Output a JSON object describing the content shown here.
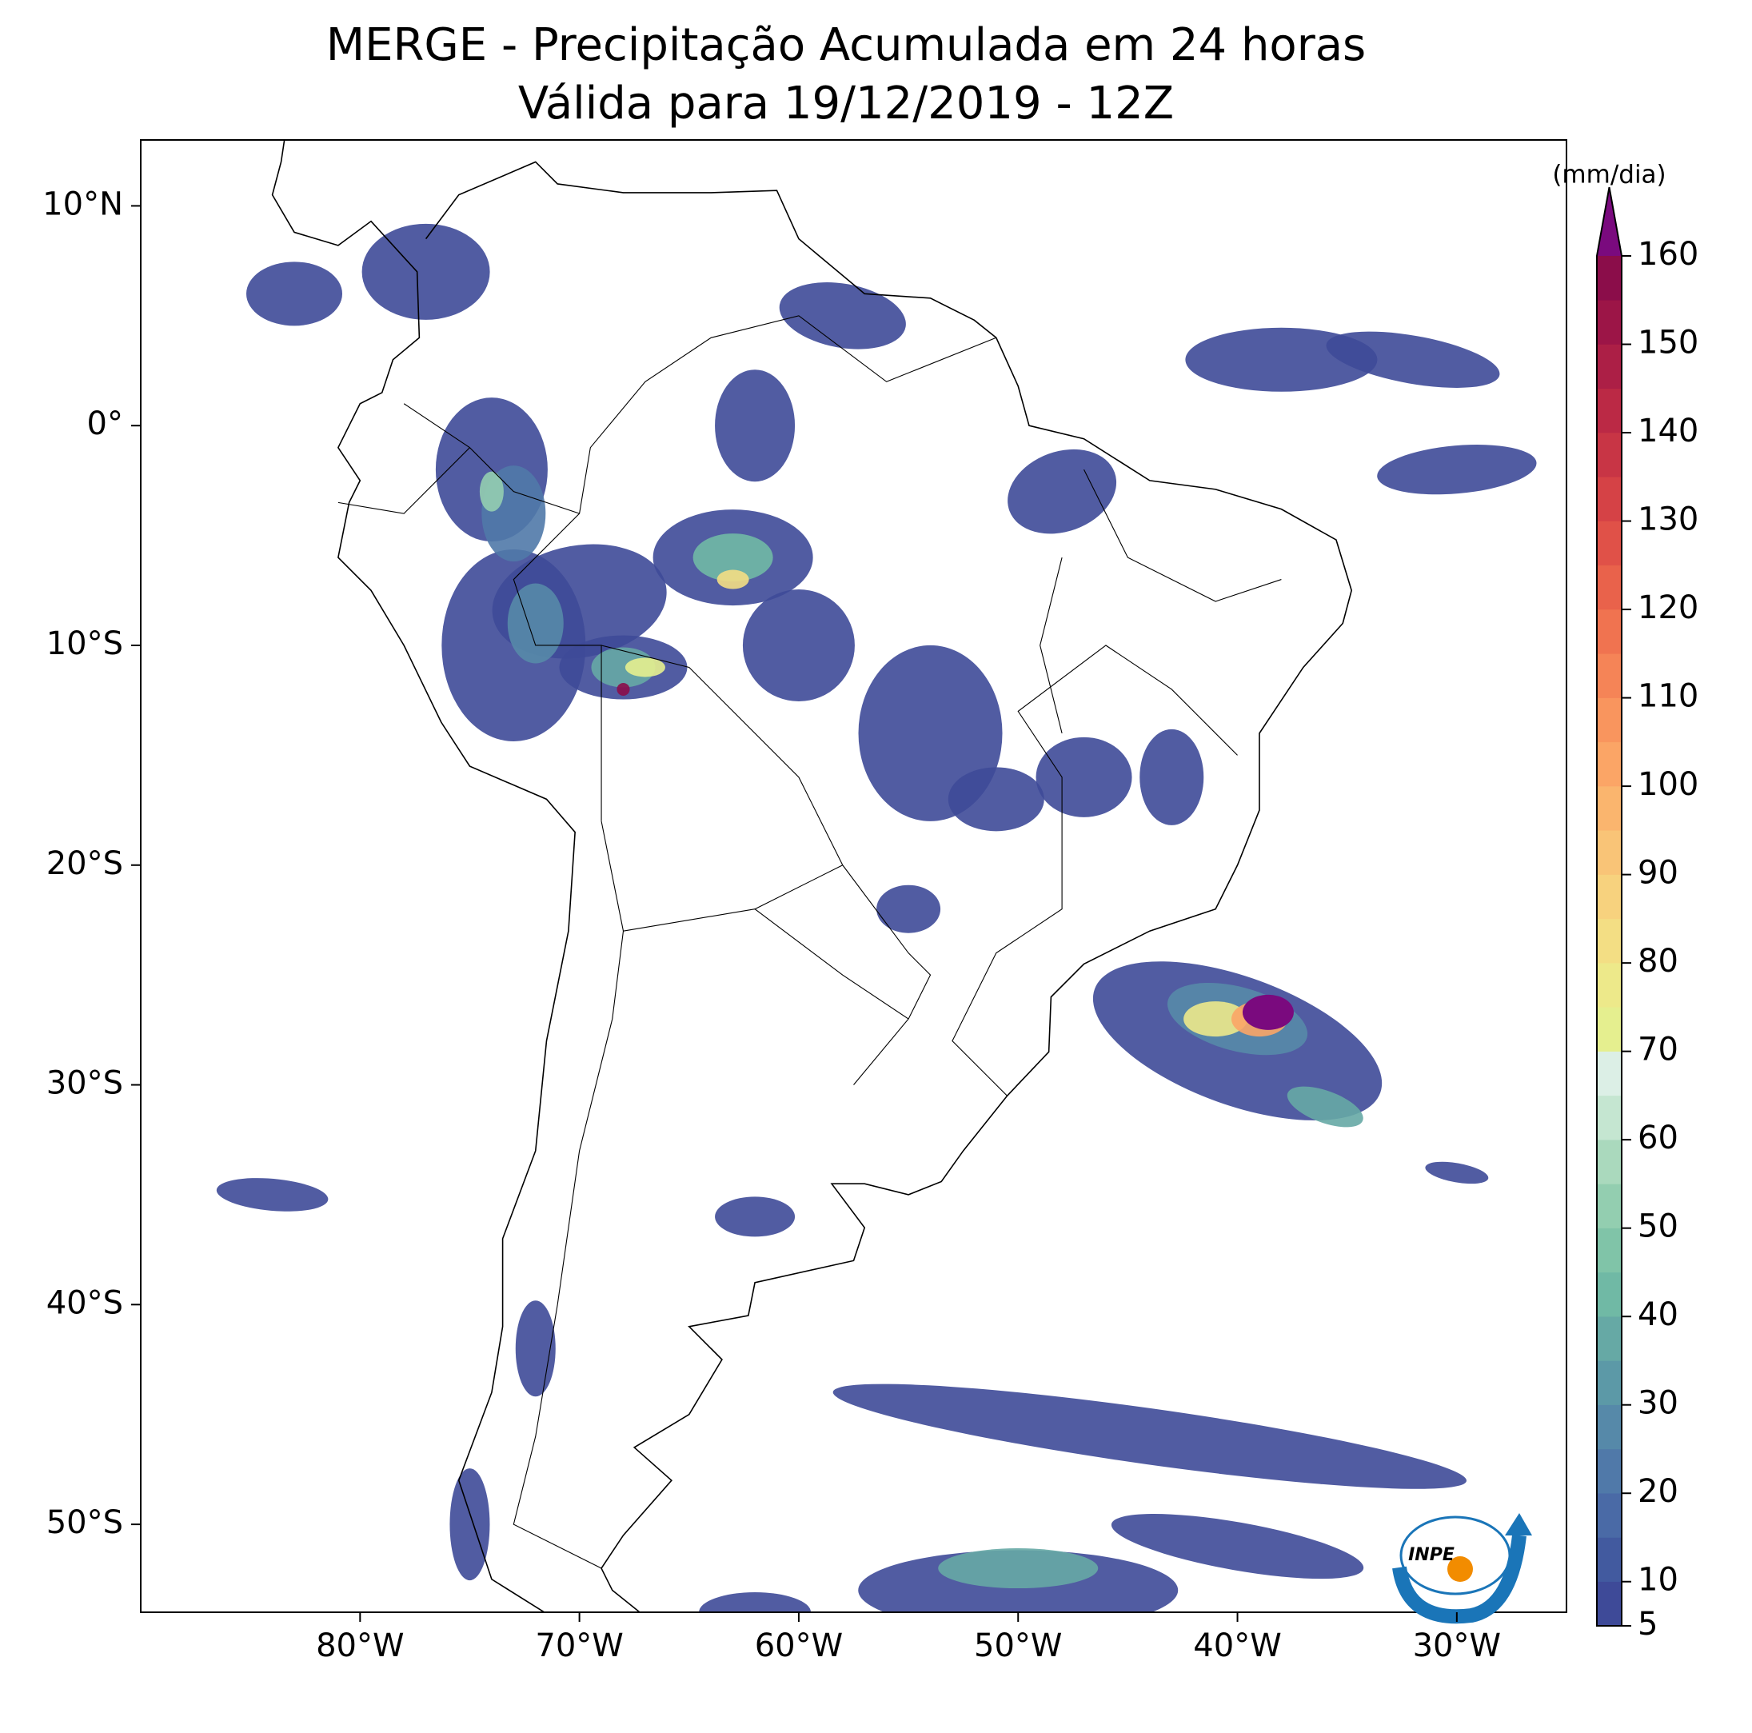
{
  "map": {
    "title": "MERGE - Precipitação Acumulada em 24 horas",
    "subtitle": "Válida para 19/12/2019 - 12Z",
    "lon_range": [
      -90,
      -25
    ],
    "lat_range": [
      -54,
      13
    ],
    "lon_ticks": [
      {
        "value": -80,
        "label": "80°W"
      },
      {
        "value": -70,
        "label": "70°W"
      },
      {
        "value": -60,
        "label": "60°W"
      },
      {
        "value": -50,
        "label": "50°W"
      },
      {
        "value": -40,
        "label": "40°W"
      },
      {
        "value": -30,
        "label": "30°W"
      }
    ],
    "lat_ticks": [
      {
        "value": 10,
        "label": "10°N"
      },
      {
        "value": 0,
        "label": "0°"
      },
      {
        "value": -10,
        "label": "10°S"
      },
      {
        "value": -20,
        "label": "20°S"
      },
      {
        "value": -30,
        "label": "30°S"
      },
      {
        "value": -40,
        "label": "40°S"
      },
      {
        "value": -50,
        "label": "50°S"
      }
    ],
    "colorbar": {
      "unit": "(mm/dia)",
      "range": [
        5,
        160
      ],
      "levels": [
        5,
        10,
        15,
        20,
        25,
        30,
        35,
        40,
        45,
        50,
        55,
        60,
        65,
        70,
        75,
        80,
        85,
        90,
        95,
        100,
        105,
        110,
        115,
        120,
        125,
        130,
        135,
        140,
        145,
        150,
        155,
        160
      ],
      "colors": [
        "#3e4a98",
        "#425a9f",
        "#4a6aa6",
        "#5079a9",
        "#5689a9",
        "#5c99a7",
        "#66a9a5",
        "#70b9a5",
        "#80c4a8",
        "#93ceb0",
        "#aad9bd",
        "#c5e6d1",
        "#dcefe6",
        "#e5ef8f",
        "#ede98a",
        "#f3de84",
        "#f7d27e",
        "#f9c477",
        "#fab56e",
        "#fba566",
        "#f9955e",
        "#f58457",
        "#f07350",
        "#e9624b",
        "#e05148",
        "#d54246",
        "#c83545",
        "#bb2945",
        "#ac1f46",
        "#9c1547",
        "#8b0d4a"
      ],
      "over_color": "#7a0a7e",
      "ticks": [
        5,
        10,
        20,
        30,
        40,
        50,
        60,
        70,
        80,
        90,
        100,
        110,
        120,
        130,
        140,
        150,
        160
      ]
    },
    "logo": "INPE"
  }
}
